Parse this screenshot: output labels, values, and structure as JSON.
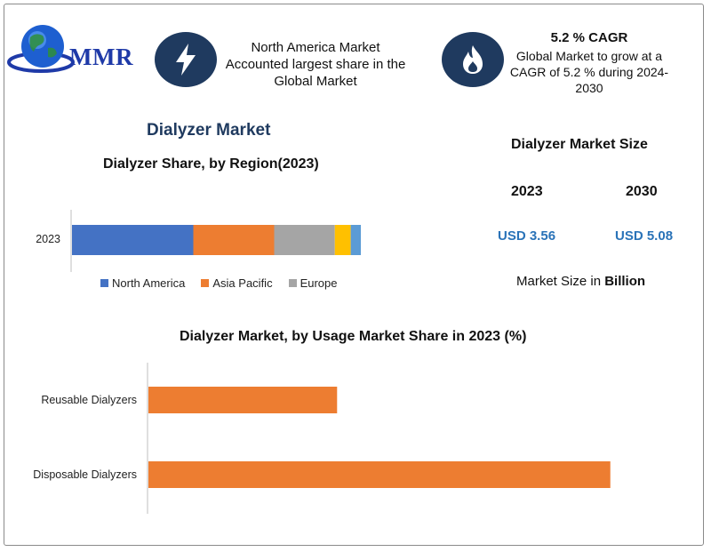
{
  "logo": {
    "text": "MMR",
    "icon": "globe-icon"
  },
  "header": {
    "left_icon": "lightning-bolt-icon",
    "left_text_lines": [
      "North America Market",
      "Accounted largest share in the",
      "Global Market"
    ],
    "right_icon": "flame-icon",
    "right_title": "5.2 % CAGR",
    "right_text_lines": [
      "Global Market to grow at a",
      "CAGR of 5.2 % during 2024-",
      "2030"
    ]
  },
  "market_title": "Dialyzer Market",
  "market_size": {
    "title": "Dialyzer Market Size",
    "years": [
      "2023",
      "2030"
    ],
    "values": [
      "USD 3.56",
      "USD 5.08"
    ],
    "unit_prefix": "Market Size in",
    "unit_bold": "Billion"
  },
  "colors": {
    "north_america": "#4472c4",
    "asia_pacific": "#ed7d31",
    "europe": "#a5a5a5",
    "segment4": "#ffc000",
    "segment5": "#5b9bd5",
    "title_blue": "#1f3a5f",
    "value_blue": "#2a73b8"
  },
  "chart_data": [
    {
      "type": "bar",
      "orientation": "horizontal-stacked",
      "title": "Dialyzer Share, by Region(2023)",
      "categories": [
        "2023"
      ],
      "series": [
        {
          "name": "North America",
          "values": [
            42
          ]
        },
        {
          "name": "Asia Pacific",
          "values": [
            28
          ]
        },
        {
          "name": "Europe",
          "values": [
            21
          ]
        },
        {
          "values": [
            5.5
          ]
        },
        {
          "values": [
            3.5
          ]
        }
      ],
      "legend": [
        "North America",
        "Asia Pacific",
        "Europe"
      ],
      "legend_position": "bottom",
      "xlim": [
        0,
        100
      ]
    },
    {
      "type": "bar",
      "orientation": "horizontal",
      "title": "Dialyzer Market, by Usage Market Share in 2023 (%)",
      "categories": [
        "Reusable Dialyzers",
        "Disposable Dialyzers"
      ],
      "values": [
        29,
        71
      ],
      "xlim": [
        0,
        100
      ],
      "grid": false
    }
  ]
}
